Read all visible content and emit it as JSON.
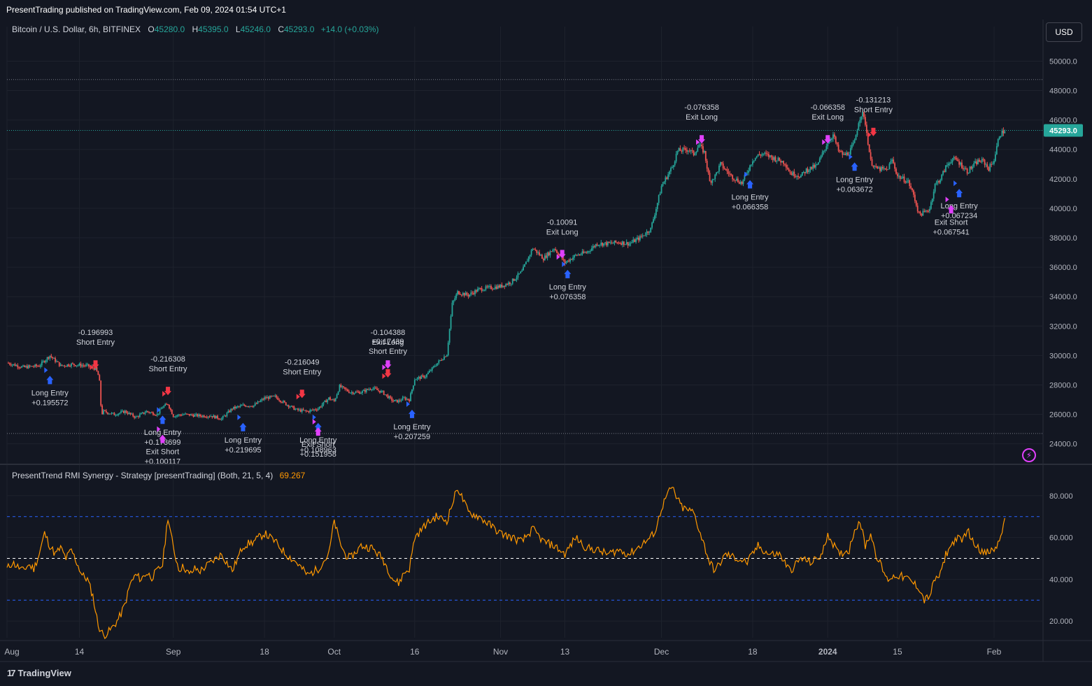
{
  "header": {
    "published": "PresentTrading published on TradingView.com, Feb 09, 2024 01:54 UTC+1"
  },
  "symbol": {
    "name": "Bitcoin / U.S. Dollar, 6h, BITFINEX",
    "o_label": "O",
    "o": "45280.0",
    "h_label": "H",
    "h": "45395.0",
    "l_label": "L",
    "l": "45246.0",
    "c_label": "C",
    "c": "45293.0",
    "change": "+14.0 (+0.03%)"
  },
  "currency_button": "USD",
  "indicator_legend": {
    "name": "PresentTrend RMI Synergy - Strategy [presentTrading] (Both, 21, 5, 4)",
    "value": "69.267"
  },
  "branding": {
    "logo": "17",
    "name": "TradingView"
  },
  "icons": {
    "bolt": "lightning-icon",
    "logo": "tradingview-logo-icon"
  },
  "colors": {
    "background": "#131722",
    "grid": "#1e222d",
    "up": "#26a69a",
    "down": "#ef5350",
    "long": "#2962ff",
    "short": "#f23645",
    "exit": "#e040fb",
    "rmi": "#ff9800",
    "level_blue": "#2962ff",
    "level_mid": "#ffffff",
    "last_price_bg": "#26a69a",
    "label_text": "#d1d4dc"
  },
  "chart_data": [
    {
      "type": "candlestick",
      "price_axis_ticks": [
        "50000.0",
        "48000.0",
        "46000.0",
        "44000.0",
        "42000.0",
        "40000.0",
        "38000.0",
        "36000.0",
        "34000.0",
        "32000.0",
        "30000.0",
        "28000.0",
        "26000.0",
        "24000.0"
      ],
      "tick_values": [
        50000,
        48000,
        46000,
        44000,
        42000,
        40000,
        38000,
        36000,
        34000,
        32000,
        30000,
        28000,
        26000,
        24000
      ],
      "ylim": [
        22700,
        51400
      ],
      "last_price": 45293,
      "last_price_label": "45293.0",
      "dotted_levels": [
        48750,
        45293,
        24700
      ],
      "x_axis_labels": [
        "Aug",
        "14",
        "Sep",
        "18",
        "Oct",
        "16",
        "Nov",
        "13",
        "Dec",
        "18",
        "2024",
        "15",
        "Feb"
      ],
      "x_axis_days": [
        0,
        13.5,
        31,
        48,
        61,
        76,
        92,
        104,
        122,
        139,
        153,
        166,
        184
      ],
      "x_axis_bold": [
        false,
        false,
        false,
        false,
        false,
        false,
        false,
        false,
        false,
        false,
        true,
        false,
        false
      ],
      "days_total": 193,
      "price_path": [
        [
          0,
          29500
        ],
        [
          3,
          29200
        ],
        [
          6,
          29300
        ],
        [
          8,
          30000
        ],
        [
          10,
          29300
        ],
        [
          12,
          29400
        ],
        [
          15,
          29300
        ],
        [
          16.5,
          29100
        ],
        [
          17.2,
          28500
        ],
        [
          17.6,
          26000
        ],
        [
          18,
          26200
        ],
        [
          20,
          26000
        ],
        [
          22,
          26200
        ],
        [
          24,
          25800
        ],
        [
          26,
          26200
        ],
        [
          28,
          26000
        ],
        [
          29,
          26500
        ],
        [
          30,
          26700
        ],
        [
          31,
          25900
        ],
        [
          33,
          26000
        ],
        [
          36,
          25900
        ],
        [
          38,
          25900
        ],
        [
          40,
          25700
        ],
        [
          42,
          26400
        ],
        [
          44,
          26600
        ],
        [
          46,
          26600
        ],
        [
          48,
          27100
        ],
        [
          50,
          27200
        ],
        [
          52,
          26700
        ],
        [
          54,
          26300
        ],
        [
          56,
          26200
        ],
        [
          58,
          26400
        ],
        [
          60,
          27100
        ],
        [
          61,
          26900
        ],
        [
          62,
          27900
        ],
        [
          64,
          27500
        ],
        [
          66,
          27500
        ],
        [
          68,
          27800
        ],
        [
          70,
          27500
        ],
        [
          72,
          26900
        ],
        [
          73,
          26900
        ],
        [
          74,
          27100
        ],
        [
          75,
          27000
        ],
        [
          76,
          28400
        ],
        [
          78,
          28600
        ],
        [
          80,
          29400
        ],
        [
          82,
          30100
        ],
        [
          83,
          33500
        ],
        [
          84,
          34300
        ],
        [
          86,
          34100
        ],
        [
          88,
          34500
        ],
        [
          90,
          34600
        ],
        [
          92,
          34700
        ],
        [
          94,
          35000
        ],
        [
          96,
          35700
        ],
        [
          98,
          37300
        ],
        [
          100,
          36600
        ],
        [
          102,
          37300
        ],
        [
          104,
          36300
        ],
        [
          106,
          36800
        ],
        [
          108,
          37000
        ],
        [
          110,
          37600
        ],
        [
          112,
          37600
        ],
        [
          114,
          37700
        ],
        [
          116,
          37600
        ],
        [
          118,
          38000
        ],
        [
          120,
          38600
        ],
        [
          121,
          40000
        ],
        [
          122,
          41500
        ],
        [
          124,
          42800
        ],
        [
          125,
          43900
        ],
        [
          127,
          44000
        ],
        [
          128,
          43700
        ],
        [
          129,
          44300
        ],
        [
          130,
          43800
        ],
        [
          131,
          41800
        ],
        [
          132,
          42200
        ],
        [
          133,
          43000
        ],
        [
          135,
          42200
        ],
        [
          137,
          41700
        ],
        [
          139,
          43300
        ],
        [
          140,
          43600
        ],
        [
          141,
          43700
        ],
        [
          143,
          43400
        ],
        [
          145,
          43100
        ],
        [
          146,
          42400
        ],
        [
          148,
          42200
        ],
        [
          149,
          42600
        ],
        [
          151,
          42900
        ],
        [
          153,
          44500
        ],
        [
          154,
          45000
        ],
        [
          155,
          43900
        ],
        [
          156,
          43600
        ],
        [
          157,
          43800
        ],
        [
          158,
          44500
        ],
        [
          158.8,
          46000
        ],
        [
          159.4,
          46500
        ],
        [
          160,
          45800
        ],
        [
          161,
          43200
        ],
        [
          162,
          42700
        ],
        [
          164,
          42600
        ],
        [
          165,
          43300
        ],
        [
          166,
          42200
        ],
        [
          168,
          41800
        ],
        [
          169,
          40900
        ],
        [
          170,
          39600
        ],
        [
          171,
          39700
        ],
        [
          172,
          40000
        ],
        [
          173,
          41600
        ],
        [
          174,
          42000
        ],
        [
          175,
          42800
        ],
        [
          176,
          43300
        ],
        [
          177,
          43300
        ],
        [
          179,
          42500
        ],
        [
          181,
          43200
        ],
        [
          182,
          43200
        ],
        [
          183,
          42700
        ],
        [
          184,
          43300
        ],
        [
          185,
          45000
        ],
        [
          186,
          45290
        ]
      ],
      "signal_labels": [
        {
          "day": 16.5,
          "price": 29200,
          "side": "above",
          "lines": [
            "-0.196993",
            "Short Entry"
          ]
        },
        {
          "day": 8,
          "price": 29000,
          "side": "below",
          "lines": [
            "Long Entry",
            "+0.195572"
          ]
        },
        {
          "day": 30,
          "price": 27400,
          "side": "above",
          "lines": [
            "-0.216308",
            "Short Entry"
          ]
        },
        {
          "day": 29,
          "price": 26300,
          "side": "below",
          "lines": [
            "Long Entry",
            "+0.173699"
          ]
        },
        {
          "day": 29,
          "price": 25000,
          "side": "below",
          "lines": [
            "Exit Short",
            "+0.100117"
          ]
        },
        {
          "day": 44,
          "price": 25800,
          "side": "below",
          "lines": [
            "Long Entry",
            "+0.219695"
          ]
        },
        {
          "day": 55,
          "price": 27200,
          "side": "above",
          "lines": [
            "-0.216049",
            "Short Entry"
          ]
        },
        {
          "day": 58,
          "price": 25800,
          "side": "below",
          "lines": [
            "Long Entry",
            "+0.108963"
          ]
        },
        {
          "day": 58,
          "price": 25500,
          "side": "below",
          "lines": [
            "Exit Short",
            "+0.151958"
          ]
        },
        {
          "day": 71,
          "price": 29200,
          "side": "above",
          "lines": [
            "-0.104388",
            "Exit Long"
          ]
        },
        {
          "day": 71,
          "price": 28600,
          "side": "above",
          "lines": [
            "+0.17439",
            "Short Entry"
          ]
        },
        {
          "day": 75.5,
          "price": 26700,
          "side": "below",
          "lines": [
            "Long Entry",
            "+0.207259"
          ]
        },
        {
          "day": 103.5,
          "price": 36700,
          "side": "above",
          "lines": [
            "-0.10091",
            "Exit Long"
          ]
        },
        {
          "day": 104.5,
          "price": 36200,
          "side": "below",
          "lines": [
            "Long Entry",
            "+0.076358"
          ]
        },
        {
          "day": 129.5,
          "price": 44500,
          "side": "above",
          "lines": [
            "-0.076358",
            "Exit Long"
          ]
        },
        {
          "day": 138.5,
          "price": 42300,
          "side": "below",
          "lines": [
            "Long Entry",
            "+0.066358"
          ]
        },
        {
          "day": 153,
          "price": 44500,
          "side": "above",
          "lines": [
            "-0.066358",
            "Exit Long"
          ]
        },
        {
          "day": 161.5,
          "price": 45000,
          "side": "above",
          "lines": [
            "-0.131213",
            "Short Entry"
          ]
        },
        {
          "day": 158,
          "price": 43500,
          "side": "below",
          "lines": [
            "Long Entry",
            "+0.063672"
          ]
        },
        {
          "day": 177.5,
          "price": 41700,
          "side": "below",
          "lines": [
            "Long Entry",
            "+0.067234"
          ]
        },
        {
          "day": 176,
          "price": 40600,
          "side": "below",
          "lines": [
            "Exit Short",
            "+0.067541"
          ]
        }
      ]
    },
    {
      "type": "line",
      "series_name": "PresentTrend RMI Synergy - Strategy [presentTrading] (Both, 21, 5, 4)",
      "ylim": [
        12,
        94
      ],
      "y_axis_ticks": [
        "80.000",
        "60.000",
        "40.000",
        "20.000"
      ],
      "tick_values": [
        80,
        60,
        40,
        20
      ],
      "levels": [
        70,
        50,
        30
      ],
      "last_value": 69.267,
      "rmi_path": [
        [
          0,
          45
        ],
        [
          1,
          48
        ],
        [
          2,
          46
        ],
        [
          3,
          44
        ],
        [
          4,
          47
        ],
        [
          5,
          45
        ],
        [
          6,
          52
        ],
        [
          7,
          62
        ],
        [
          8,
          56
        ],
        [
          9,
          52
        ],
        [
          10,
          55
        ],
        [
          11,
          50
        ],
        [
          12,
          54
        ],
        [
          13,
          48
        ],
        [
          14,
          42
        ],
        [
          15,
          40
        ],
        [
          16,
          32
        ],
        [
          17,
          18
        ],
        [
          18,
          13
        ],
        [
          19,
          15
        ],
        [
          20,
          18
        ],
        [
          21,
          22
        ],
        [
          22,
          28
        ],
        [
          23,
          38
        ],
        [
          24,
          42
        ],
        [
          25,
          40
        ],
        [
          26,
          43
        ],
        [
          27,
          41
        ],
        [
          28,
          44
        ],
        [
          29,
          47
        ],
        [
          30,
          70
        ],
        [
          31,
          55
        ],
        [
          32,
          45
        ],
        [
          33,
          46
        ],
        [
          34,
          42
        ],
        [
          35,
          45
        ],
        [
          36,
          44
        ],
        [
          38,
          48
        ],
        [
          40,
          52
        ],
        [
          42,
          44
        ],
        [
          44,
          56
        ],
        [
          46,
          58
        ],
        [
          48,
          62
        ],
        [
          50,
          58
        ],
        [
          52,
          52
        ],
        [
          54,
          48
        ],
        [
          56,
          42
        ],
        [
          58,
          45
        ],
        [
          60,
          52
        ],
        [
          61,
          68
        ],
        [
          62,
          58
        ],
        [
          63,
          52
        ],
        [
          64,
          50
        ],
        [
          66,
          56
        ],
        [
          68,
          55
        ],
        [
          70,
          50
        ],
        [
          72,
          40
        ],
        [
          73,
          38
        ],
        [
          74,
          43
        ],
        [
          75,
          45
        ],
        [
          76,
          60
        ],
        [
          78,
          66
        ],
        [
          80,
          70
        ],
        [
          82,
          68
        ],
        [
          83,
          76
        ],
        [
          84,
          84
        ],
        [
          85,
          78
        ],
        [
          86,
          72
        ],
        [
          88,
          70
        ],
        [
          90,
          66
        ],
        [
          92,
          62
        ],
        [
          94,
          60
        ],
        [
          96,
          58
        ],
        [
          98,
          64
        ],
        [
          100,
          58
        ],
        [
          102,
          56
        ],
        [
          104,
          52
        ],
        [
          106,
          60
        ],
        [
          108,
          55
        ],
        [
          110,
          54
        ],
        [
          112,
          52
        ],
        [
          114,
          54
        ],
        [
          116,
          52
        ],
        [
          118,
          56
        ],
        [
          120,
          60
        ],
        [
          121,
          64
        ],
        [
          122,
          74
        ],
        [
          123,
          80
        ],
        [
          124,
          84
        ],
        [
          125,
          78
        ],
        [
          126,
          74
        ],
        [
          128,
          72
        ],
        [
          130,
          56
        ],
        [
          131,
          48
        ],
        [
          132,
          44
        ],
        [
          134,
          52
        ],
        [
          136,
          50
        ],
        [
          138,
          48
        ],
        [
          140,
          56
        ],
        [
          142,
          52
        ],
        [
          144,
          52
        ],
        [
          146,
          44
        ],
        [
          148,
          50
        ],
        [
          150,
          48
        ],
        [
          152,
          52
        ],
        [
          153,
          62
        ],
        [
          155,
          52
        ],
        [
          157,
          54
        ],
        [
          158,
          64
        ],
        [
          159,
          68
        ],
        [
          160,
          56
        ],
        [
          161,
          62
        ],
        [
          162,
          52
        ],
        [
          163,
          46
        ],
        [
          164,
          40
        ],
        [
          166,
          42
        ],
        [
          168,
          40
        ],
        [
          170,
          36
        ],
        [
          171,
          30
        ],
        [
          172,
          32
        ],
        [
          173,
          40
        ],
        [
          174,
          42
        ],
        [
          175,
          52
        ],
        [
          176,
          56
        ],
        [
          177,
          60
        ],
        [
          178,
          58
        ],
        [
          179,
          64
        ],
        [
          180,
          58
        ],
        [
          181,
          56
        ],
        [
          182,
          52
        ],
        [
          184,
          54
        ],
        [
          185,
          58
        ],
        [
          186,
          69.267
        ]
      ]
    }
  ]
}
